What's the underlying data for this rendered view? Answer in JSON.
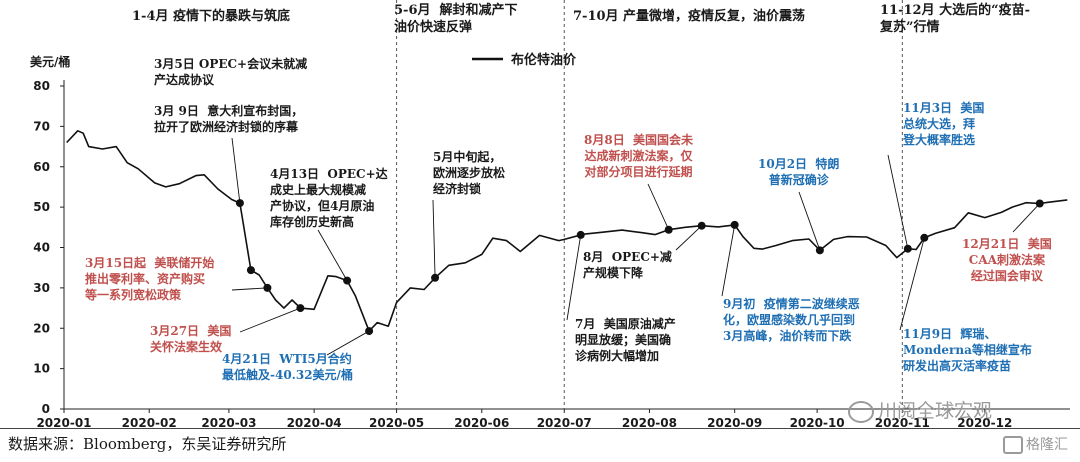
{
  "chart_data": {
    "type": "line",
    "ylabel": "美元/桶",
    "ylim": [
      0,
      80
    ],
    "yticks": [
      0,
      10,
      20,
      30,
      40,
      50,
      60,
      70,
      80
    ],
    "xlim": [
      "2020-01-01",
      "2021-01-01"
    ],
    "xticks": [
      "2020-01",
      "2020-02",
      "2020-03",
      "2020-04",
      "2020-05",
      "2020-06",
      "2020-07",
      "2020-08",
      "2020-09",
      "2020-10",
      "2020-11",
      "2020-12"
    ],
    "legend": "布伦特油价",
    "legend_position": "top-center",
    "series": [
      {
        "name": "布伦特油价",
        "x": [
          "2020-01-02",
          "2020-01-06",
          "2020-01-08",
          "2020-01-10",
          "2020-01-15",
          "2020-01-20",
          "2020-01-24",
          "2020-01-28",
          "2020-02-03",
          "2020-02-07",
          "2020-02-12",
          "2020-02-18",
          "2020-02-21",
          "2020-02-26",
          "2020-03-02",
          "2020-03-05",
          "2020-03-09",
          "2020-03-12",
          "2020-03-15",
          "2020-03-18",
          "2020-03-21",
          "2020-03-24",
          "2020-03-27",
          "2020-04-01",
          "2020-04-06",
          "2020-04-09",
          "2020-04-13",
          "2020-04-16",
          "2020-04-21",
          "2020-04-24",
          "2020-04-28",
          "2020-05-01",
          "2020-05-06",
          "2020-05-11",
          "2020-05-15",
          "2020-05-20",
          "2020-05-26",
          "2020-06-01",
          "2020-06-05",
          "2020-06-10",
          "2020-06-15",
          "2020-06-22",
          "2020-06-29",
          "2020-07-01",
          "2020-07-08",
          "2020-07-15",
          "2020-07-22",
          "2020-07-29",
          "2020-08-03",
          "2020-08-08",
          "2020-08-14",
          "2020-08-20",
          "2020-08-26",
          "2020-09-01",
          "2020-09-04",
          "2020-09-08",
          "2020-09-11",
          "2020-09-16",
          "2020-09-22",
          "2020-09-28",
          "2020-10-02",
          "2020-10-07",
          "2020-10-12",
          "2020-10-19",
          "2020-10-26",
          "2020-10-30",
          "2020-11-03",
          "2020-11-06",
          "2020-11-09",
          "2020-11-13",
          "2020-11-20",
          "2020-11-25",
          "2020-12-01",
          "2020-12-07",
          "2020-12-11",
          "2020-12-16",
          "2020-12-21",
          "2020-12-24",
          "2020-12-31"
        ],
        "values": [
          66.0,
          68.9,
          68.3,
          65.0,
          64.4,
          65.0,
          61.0,
          59.5,
          56.0,
          55.0,
          55.8,
          57.8,
          58.0,
          54.5,
          51.9,
          51.0,
          34.4,
          33.2,
          30.0,
          27.0,
          25.0,
          27.0,
          25.0,
          24.7,
          33.0,
          32.8,
          31.8,
          28.0,
          19.3,
          21.4,
          20.5,
          26.4,
          30.0,
          29.6,
          32.5,
          35.6,
          36.2,
          38.3,
          42.3,
          41.7,
          39.0,
          43.0,
          41.7,
          42.0,
          43.3,
          43.8,
          44.3,
          43.7,
          43.2,
          44.4,
          45.0,
          45.4,
          45.1,
          45.6,
          42.7,
          39.8,
          39.6,
          40.5,
          41.7,
          42.1,
          39.3,
          42.0,
          42.7,
          42.6,
          40.5,
          37.5,
          39.7,
          39.5,
          42.4,
          43.5,
          44.9,
          48.6,
          47.4,
          48.7,
          50.0,
          51.1,
          50.9,
          51.2,
          51.8
        ]
      }
    ],
    "markers": [
      "2020-03-05",
      "2020-03-09",
      "2020-03-15",
      "2020-03-27",
      "2020-04-13",
      "2020-04-21",
      "2020-05-15",
      "2020-07-07",
      "2020-08-08",
      "2020-08-20",
      "2020-09-01",
      "2020-10-02",
      "2020-11-03",
      "2020-11-09",
      "2020-12-21"
    ],
    "phase_dividers": [
      "2020-05-01",
      "2020-07-01",
      "2020-11-01"
    ]
  },
  "phases": [
    "1-4月  疫情下的暴跌与筑底",
    "5-6月  解封和减产下\n油价快速反弹",
    "7-10月  产量微增，疫情反复，油价震荡",
    "11-12月 大选后的“疫苗-\n复苏”行情"
  ],
  "annotations": {
    "a1": "3月5日 OPEC+会议未就减\n产达成协议",
    "a2": "3月 9日  意大利宣布封国，\n拉开了欧洲经济封锁的序幕",
    "a3": "4月13日  OPEC+达\n成史上最大规模减\n产协议，但4月原油\n库存创历史新高",
    "a4": "5月中旬起，\n欧洲逐步放松\n经济封锁",
    "a5": "3月15日起  美联储开始\n推出零利率、资产购买\n等一系列宽松政策",
    "a6": "3月27日  美国\n关怀法案生效",
    "a7": "4月21日  WTI5月合约\n最低触及-40.32美元/桶",
    "a8": "8月8日  美国国会未\n达成新刺激法案，仅\n对部分项目进行延期",
    "a9": "10月2日  特朗\n普新冠确诊",
    "a10": "8月  OPEC+减\n产规模下降",
    "a11": "7月  美国原油减产\n明显放缓；美国确\n诊病例大幅增加",
    "a12": "9月初  疫情第二波继续恶\n化，欧盟感染数几乎回到\n3月高峰，油价转而下跌",
    "a13": "11月3日  美国\n总统大选，拜\n登大概率胜选",
    "a14": "12月21日  美国\nCAA刺激法案\n经过国会审议",
    "a15": "11月9日  辉瑞、\nMonderna等相继宣布\n研发出高灭活率疫苗"
  },
  "source": "数据来源：Bloomberg，东吴证券研究所",
  "watermark": {
    "account": "川阅全球宏观",
    "logo": "格隆汇"
  },
  "colors": {
    "line": "#111111",
    "annotation_black": "#1a1a1a",
    "annotation_red": "#c0504d",
    "annotation_blue": "#1f6fb4",
    "divider": "#555555"
  }
}
